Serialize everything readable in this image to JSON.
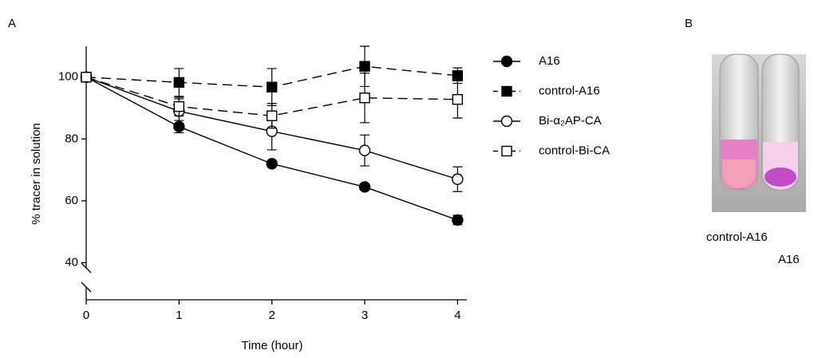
{
  "panel_labels": [
    "A",
    "B"
  ],
  "chart_data": {
    "type": "line",
    "x_label": "Time (hour)",
    "y_label": "% tracer in solution",
    "x": [
      0,
      1,
      2,
      3,
      4
    ],
    "xlim": [
      0,
      4.1
    ],
    "xticks": [
      0,
      1,
      2,
      3,
      4
    ],
    "ylim": [
      28,
      110
    ],
    "yticks": [
      40,
      60,
      80,
      100
    ],
    "series": [
      {
        "name": "A16",
        "color": "#000000",
        "line_style": "solid",
        "marker": "circle",
        "filled": true,
        "values": [
          100,
          84,
          72,
          64.5,
          53.8
        ],
        "errors": [
          0,
          2,
          1,
          1,
          1.5
        ]
      },
      {
        "name": "control-A16",
        "color": "#000000",
        "line_style": "dashed",
        "marker": "square",
        "filled": true,
        "values": [
          100,
          98.3,
          96.8,
          103.5,
          100.5
        ],
        "errors": [
          0,
          4.5,
          6,
          6.5,
          2.5
        ]
      },
      {
        "name": "Bi-α₂AP-CA",
        "color": "#000000",
        "line_style": "solid",
        "marker": "circle",
        "filled": false,
        "values": [
          100,
          89,
          82.5,
          76.3,
          67
        ],
        "errors": [
          0,
          4,
          6,
          5,
          4
        ]
      },
      {
        "name": "control-Bi-CA",
        "color": "#000000",
        "line_style": "dashed",
        "marker": "square",
        "filled": false,
        "values": [
          100,
          90.5,
          87.5,
          93.3,
          92.8
        ],
        "errors": [
          0,
          3,
          4,
          8,
          6
        ]
      }
    ]
  },
  "panel_b": {
    "labels": [
      "control-A16",
      "A16"
    ]
  }
}
